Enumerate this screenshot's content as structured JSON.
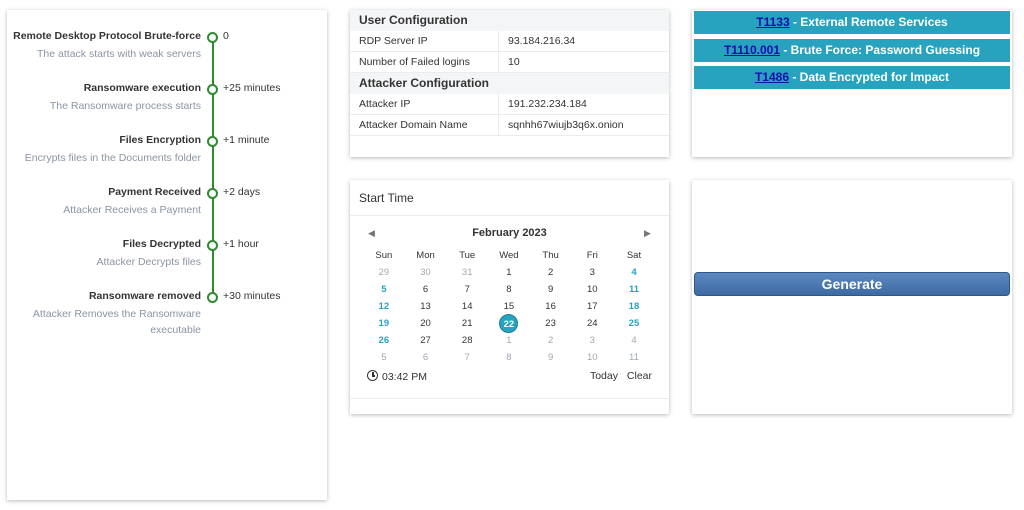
{
  "timeline": [
    {
      "title": "Remote Desktop Protocol Brute-force",
      "subtitle": "The attack starts with weak servers",
      "time": "0"
    },
    {
      "title": "Ransomware execution",
      "subtitle": "The Ransomware process starts",
      "time": "+25 minutes"
    },
    {
      "title": "Files Encryption",
      "subtitle": "Encrypts files in the Documents folder",
      "time": "+1 minute"
    },
    {
      "title": "Payment Received",
      "subtitle": "Attacker Receives a Payment",
      "time": "+2 days"
    },
    {
      "title": "Files Decrypted",
      "subtitle": "Attacker Decrypts files",
      "time": "+1 hour"
    },
    {
      "title": "Ransomware removed",
      "subtitle": "Attacker Removes the Ransomware executable",
      "time": "+30 minutes"
    }
  ],
  "user_config": {
    "title": "User Configuration",
    "rows": [
      {
        "label": "RDP Server IP",
        "value": "93.184.216.34"
      },
      {
        "label": "Number of Failed logins",
        "value": "10"
      }
    ]
  },
  "attacker_config": {
    "title": "Attacker Configuration",
    "rows": [
      {
        "label": "Attacker IP",
        "value": "191.232.234.184"
      },
      {
        "label": "Attacker Domain Name",
        "value": "sqnhh67wiujb3q6x.onion"
      }
    ]
  },
  "techniques": [
    {
      "id": "T1133",
      "name": " - External Remote Services"
    },
    {
      "id": "T1110.001",
      "name": " - Brute Force: Password Guessing"
    },
    {
      "id": "T1486",
      "name": " - Data Encrypted for Impact"
    }
  ],
  "calendar": {
    "title": "Start Time",
    "month_label": "February 2023",
    "prev_icon": "◀",
    "next_icon": "▶",
    "weekdays": [
      "Sun",
      "Mon",
      "Tue",
      "Wed",
      "Thu",
      "Fri",
      "Sat"
    ],
    "weeks": [
      [
        "29",
        "30",
        "31",
        "1",
        "2",
        "3",
        "4"
      ],
      [
        "5",
        "6",
        "7",
        "8",
        "9",
        "10",
        "11"
      ],
      [
        "12",
        "13",
        "14",
        "15",
        "16",
        "17",
        "18"
      ],
      [
        "19",
        "20",
        "21",
        "22",
        "23",
        "24",
        "25"
      ],
      [
        "26",
        "27",
        "28",
        "1",
        "2",
        "3",
        "4"
      ],
      [
        "5",
        "6",
        "7",
        "8",
        "9",
        "10",
        "11"
      ]
    ],
    "selected_day": "22",
    "time_value": "03:42 PM",
    "today_label": "Today",
    "clear_label": "Clear",
    "accent_color": "#27a3c0"
  },
  "generate": {
    "label": "Generate"
  }
}
